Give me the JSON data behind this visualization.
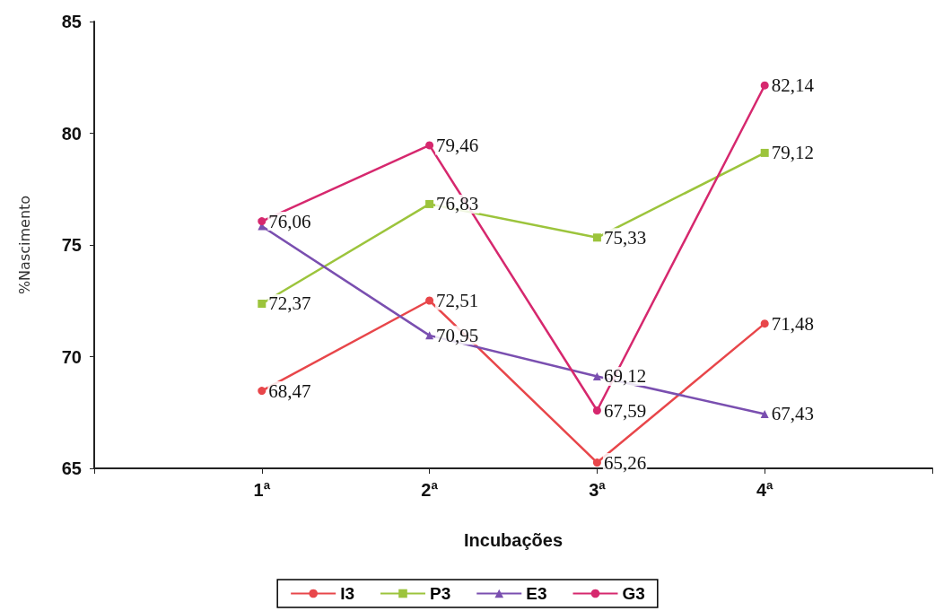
{
  "chart_data": {
    "type": "line",
    "xlabel": "Incubações",
    "ylabel": "%Nascimento",
    "categories": [
      "1ª",
      "2ª",
      "3ª",
      "4ª"
    ],
    "series": [
      {
        "name": "I3",
        "color": "#e8464a",
        "marker": "circle",
        "values": [
          68.47,
          72.51,
          65.26,
          71.48
        ],
        "value_labels": [
          "68,47",
          "72,51",
          "65,26",
          "71,48"
        ]
      },
      {
        "name": "P3",
        "color": "#9cc43c",
        "marker": "square",
        "values": [
          72.37,
          76.83,
          75.33,
          79.12
        ],
        "value_labels": [
          "72,37",
          "76,83",
          "75,33",
          "79,12"
        ]
      },
      {
        "name": "E3",
        "color": "#7a4fb0",
        "marker": "triangle",
        "values": [
          75.84,
          70.95,
          69.12,
          67.43
        ],
        "value_labels": [
          null,
          "70,95",
          "69,12",
          "67,43"
        ]
      },
      {
        "name": "G3",
        "color": "#d6286e",
        "marker": "circle",
        "values": [
          76.06,
          79.46,
          67.59,
          82.14
        ],
        "value_labels": [
          "76,06",
          "79,46",
          "67,59",
          "82,14"
        ]
      }
    ],
    "ylim": [
      65,
      85
    ],
    "yticks": [
      65,
      70,
      75,
      80,
      85
    ],
    "grid": false,
    "legend": "bottom",
    "line_style": "solid"
  }
}
